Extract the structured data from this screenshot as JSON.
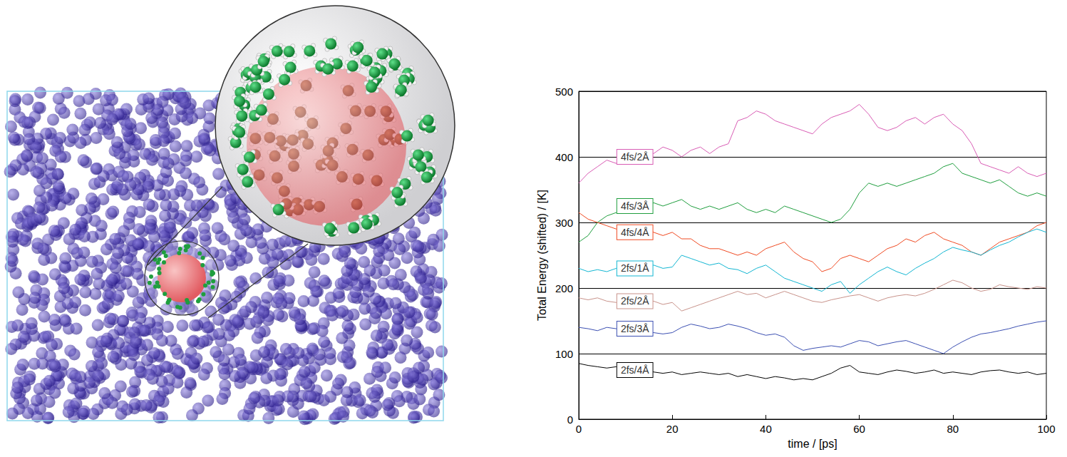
{
  "chart_data": {
    "type": "line",
    "xlabel": "time / [ps]",
    "ylabel": "Total Energy (shifted) / [K]",
    "xlim": [
      0,
      100
    ],
    "xticks": [
      0,
      20,
      40,
      60,
      80,
      100
    ],
    "ylim": [
      0,
      500
    ],
    "yticks": [
      0,
      100,
      200,
      300,
      400,
      500
    ],
    "grid": true,
    "x": [
      0,
      2,
      4,
      6,
      8,
      10,
      12,
      14,
      16,
      18,
      20,
      22,
      24,
      26,
      28,
      30,
      32,
      34,
      36,
      38,
      40,
      42,
      44,
      46,
      48,
      50,
      52,
      54,
      56,
      58,
      60,
      62,
      64,
      66,
      68,
      70,
      72,
      74,
      76,
      78,
      80,
      82,
      84,
      86,
      88,
      90,
      92,
      94,
      96,
      98,
      100
    ],
    "series": [
      {
        "name": "4fs/2Å",
        "color": "#d85cb4",
        "values": [
          360,
          375,
          385,
          395,
          390,
          405,
          400,
          410,
          405,
          415,
          410,
          400,
          410,
          415,
          405,
          415,
          420,
          455,
          460,
          470,
          465,
          455,
          450,
          445,
          440,
          435,
          450,
          460,
          465,
          470,
          480,
          465,
          445,
          440,
          445,
          455,
          460,
          450,
          460,
          465,
          450,
          440,
          420,
          390,
          385,
          380,
          375,
          385,
          375,
          370,
          375
        ]
      },
      {
        "name": "4fs/3Å",
        "color": "#1f9e3e",
        "values": [
          270,
          280,
          300,
          310,
          315,
          320,
          325,
          320,
          330,
          325,
          330,
          335,
          325,
          320,
          325,
          320,
          325,
          330,
          320,
          315,
          320,
          315,
          325,
          320,
          315,
          310,
          305,
          300,
          305,
          320,
          345,
          360,
          355,
          360,
          355,
          360,
          365,
          370,
          375,
          385,
          390,
          375,
          370,
          365,
          360,
          365,
          355,
          345,
          340,
          345,
          340
        ]
      },
      {
        "name": "4fs/4Å",
        "color": "#f04a22",
        "values": [
          315,
          305,
          300,
          295,
          290,
          290,
          285,
          290,
          285,
          280,
          285,
          275,
          275,
          265,
          260,
          260,
          255,
          250,
          255,
          250,
          260,
          265,
          270,
          255,
          245,
          240,
          225,
          230,
          245,
          250,
          245,
          240,
          250,
          260,
          265,
          275,
          270,
          280,
          285,
          275,
          270,
          265,
          255,
          250,
          260,
          270,
          275,
          280,
          285,
          295,
          300
        ]
      },
      {
        "name": "2fs/1Å",
        "color": "#12b6d2",
        "values": [
          230,
          225,
          228,
          225,
          230,
          228,
          230,
          225,
          235,
          230,
          232,
          250,
          245,
          240,
          235,
          238,
          230,
          228,
          222,
          230,
          235,
          225,
          215,
          210,
          205,
          200,
          195,
          205,
          210,
          192,
          205,
          215,
          225,
          232,
          225,
          220,
          230,
          238,
          245,
          255,
          262,
          258,
          255,
          250,
          258,
          265,
          270,
          278,
          285,
          290,
          285
        ]
      },
      {
        "name": "2fs/2Å",
        "color": "#c8928a",
        "values": [
          185,
          182,
          185,
          180,
          178,
          182,
          180,
          178,
          180,
          175,
          178,
          165,
          170,
          175,
          180,
          185,
          190,
          195,
          190,
          192,
          185,
          190,
          195,
          190,
          185,
          180,
          178,
          182,
          185,
          188,
          190,
          185,
          180,
          185,
          188,
          190,
          188,
          192,
          198,
          205,
          212,
          208,
          200,
          195,
          198,
          205,
          202,
          200,
          198,
          202,
          200
        ]
      },
      {
        "name": "2fs/3Å",
        "color": "#3b4fb2",
        "values": [
          140,
          138,
          135,
          140,
          138,
          135,
          138,
          135,
          132,
          130,
          132,
          140,
          145,
          142,
          138,
          140,
          145,
          142,
          138,
          132,
          128,
          130,
          125,
          112,
          105,
          108,
          110,
          112,
          110,
          115,
          120,
          118,
          112,
          115,
          118,
          120,
          115,
          110,
          105,
          100,
          110,
          118,
          125,
          130,
          132,
          135,
          138,
          142,
          145,
          148,
          150
        ]
      },
      {
        "name": "2fs/4Å",
        "color": "#000000",
        "values": [
          85,
          82,
          80,
          78,
          80,
          78,
          75,
          78,
          72,
          70,
          72,
          68,
          70,
          72,
          70,
          68,
          70,
          65,
          68,
          65,
          62,
          65,
          63,
          60,
          62,
          60,
          65,
          70,
          78,
          82,
          72,
          70,
          68,
          72,
          75,
          73,
          70,
          72,
          75,
          70,
          72,
          70,
          68,
          72,
          74,
          75,
          72,
          70,
          72,
          68,
          70
        ]
      }
    ]
  }
}
